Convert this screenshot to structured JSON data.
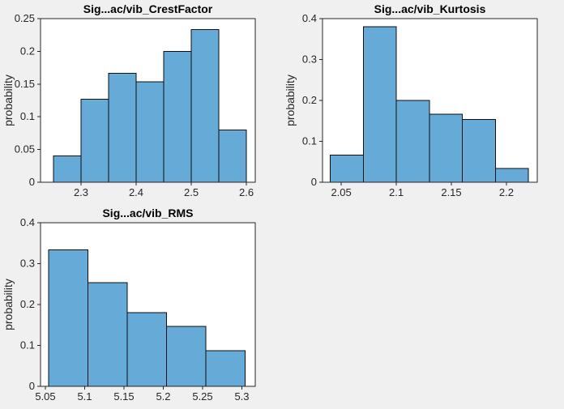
{
  "figure": {
    "background_color": "#f0f0f0",
    "plot_bg_color": "#ffffff",
    "axis_color": "#262626",
    "bar_fill_color": "#66aad7",
    "bar_edge_color": "#0f0f0f",
    "title_color": "#000000",
    "tick_label_color": "#262626"
  },
  "chart_data": [
    {
      "type": "bar",
      "subtype": "histogram",
      "title": "Sig...ac/vib_CrestFactor",
      "xlabel": "",
      "ylabel": "probability",
      "bin_edges": [
        2.25,
        2.3,
        2.35,
        2.4,
        2.45,
        2.5,
        2.55,
        2.6
      ],
      "values": [
        0.04,
        0.1267,
        0.1667,
        0.1533,
        0.2,
        0.2333,
        0.08
      ],
      "xlim": [
        2.2265,
        2.616
      ],
      "ylim": [
        0,
        0.25
      ],
      "xticks": [
        2.3,
        2.4,
        2.5,
        2.6
      ],
      "xtick_labels": [
        "2.3",
        "2.4",
        "2.5",
        "2.6"
      ],
      "yticks": [
        0,
        0.05,
        0.1,
        0.15,
        0.2,
        0.25
      ],
      "ytick_labels": [
        "0",
        "0.05",
        "0.1",
        "0.15",
        "0.2",
        "0.25"
      ],
      "grid": false,
      "legend": null
    },
    {
      "type": "bar",
      "subtype": "histogram",
      "title": "Sig...ac/vib_Kurtosis",
      "xlabel": "",
      "ylabel": "probability",
      "bin_edges": [
        2.04,
        2.07,
        2.1,
        2.13,
        2.16,
        2.19,
        2.22
      ],
      "values": [
        0.0667,
        0.38,
        0.2,
        0.1667,
        0.1533,
        0.0333
      ],
      "xlim": [
        2.033,
        2.228
      ],
      "ylim": [
        0,
        0.4
      ],
      "xticks": [
        2.05,
        2.1,
        2.15,
        2.2
      ],
      "xtick_labels": [
        "2.05",
        "2.1",
        "2.15",
        "2.2"
      ],
      "yticks": [
        0,
        0.1,
        0.2,
        0.3,
        0.4
      ],
      "ytick_labels": [
        "0",
        "0.1",
        "0.2",
        "0.3",
        "0.4"
      ],
      "grid": false,
      "legend": null
    },
    {
      "type": "bar",
      "subtype": "histogram",
      "title": "Sig...ac/vib_RMS",
      "xlabel": "",
      "ylabel": "probability",
      "bin_edges": [
        5.054,
        5.104,
        5.154,
        5.204,
        5.254,
        5.304
      ],
      "values": [
        0.3333,
        0.2533,
        0.18,
        0.1467,
        0.0867
      ],
      "xlim": [
        5.0438,
        5.317
      ],
      "ylim": [
        0,
        0.4
      ],
      "xticks": [
        5.05,
        5.1,
        5.15,
        5.2,
        5.25,
        5.3
      ],
      "xtick_labels": [
        "5.05",
        "5.1",
        "5.15",
        "5.2",
        "5.25",
        "5.3"
      ],
      "yticks": [
        0,
        0.1,
        0.2,
        0.3,
        0.4
      ],
      "ytick_labels": [
        "0",
        "0.1",
        "0.2",
        "0.3",
        "0.4"
      ],
      "grid": false,
      "legend": null
    }
  ]
}
